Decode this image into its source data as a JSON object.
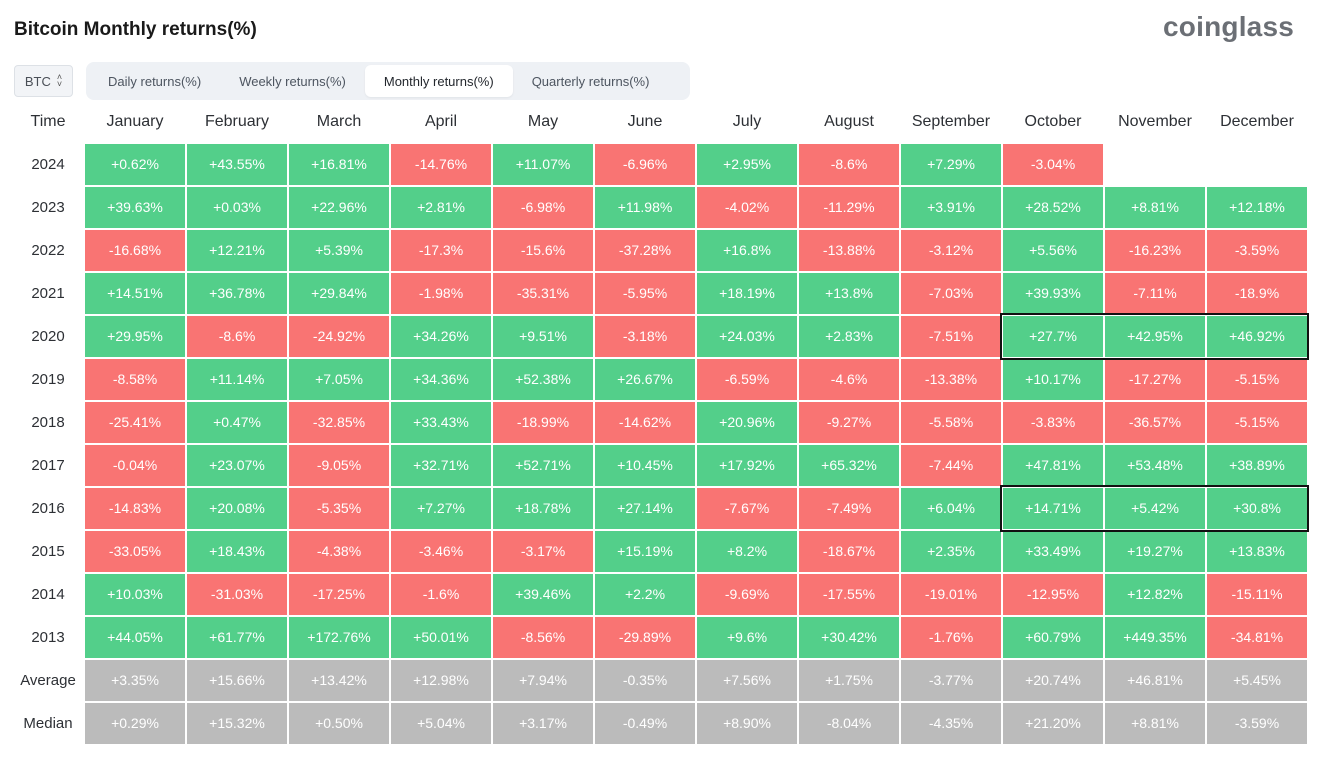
{
  "title": "Bitcoin Monthly returns(%)",
  "logo": "coinglass",
  "coin_select": {
    "value": "BTC",
    "icon": "chevron-updown-icon"
  },
  "tabs": [
    {
      "label": "Daily returns(%)",
      "active": false
    },
    {
      "label": "Weekly returns(%)",
      "active": false
    },
    {
      "label": "Monthly returns(%)",
      "active": true
    },
    {
      "label": "Quarterly returns(%)",
      "active": false
    }
  ],
  "colors": {
    "positive": "#53cf8a",
    "negative": "#f97473",
    "summary": "#bbbbbb",
    "highlight_border": "#111111"
  },
  "table": {
    "columns": [
      "Time",
      "January",
      "February",
      "March",
      "April",
      "May",
      "June",
      "July",
      "August",
      "September",
      "October",
      "November",
      "December"
    ],
    "rows": [
      {
        "label": "2024",
        "values": [
          "+0.62%",
          "+43.55%",
          "+16.81%",
          "-14.76%",
          "+11.07%",
          "-6.96%",
          "+2.95%",
          "-8.6%",
          "+7.29%",
          "-3.04%",
          null,
          null
        ]
      },
      {
        "label": "2023",
        "values": [
          "+39.63%",
          "+0.03%",
          "+22.96%",
          "+2.81%",
          "-6.98%",
          "+11.98%",
          "-4.02%",
          "-11.29%",
          "+3.91%",
          "+28.52%",
          "+8.81%",
          "+12.18%"
        ]
      },
      {
        "label": "2022",
        "values": [
          "-16.68%",
          "+12.21%",
          "+5.39%",
          "-17.3%",
          "-15.6%",
          "-37.28%",
          "+16.8%",
          "-13.88%",
          "-3.12%",
          "+5.56%",
          "-16.23%",
          "-3.59%"
        ]
      },
      {
        "label": "2021",
        "values": [
          "+14.51%",
          "+36.78%",
          "+29.84%",
          "-1.98%",
          "-35.31%",
          "-5.95%",
          "+18.19%",
          "+13.8%",
          "-7.03%",
          "+39.93%",
          "-7.11%",
          "-18.9%"
        ]
      },
      {
        "label": "2020",
        "values": [
          "+29.95%",
          "-8.6%",
          "-24.92%",
          "+34.26%",
          "+9.51%",
          "-3.18%",
          "+24.03%",
          "+2.83%",
          "-7.51%",
          "+27.7%",
          "+42.95%",
          "+46.92%"
        ]
      },
      {
        "label": "2019",
        "values": [
          "-8.58%",
          "+11.14%",
          "+7.05%",
          "+34.36%",
          "+52.38%",
          "+26.67%",
          "-6.59%",
          "-4.6%",
          "-13.38%",
          "+10.17%",
          "-17.27%",
          "-5.15%"
        ]
      },
      {
        "label": "2018",
        "values": [
          "-25.41%",
          "+0.47%",
          "-32.85%",
          "+33.43%",
          "-18.99%",
          "-14.62%",
          "+20.96%",
          "-9.27%",
          "-5.58%",
          "-3.83%",
          "-36.57%",
          "-5.15%"
        ]
      },
      {
        "label": "2017",
        "values": [
          "-0.04%",
          "+23.07%",
          "-9.05%",
          "+32.71%",
          "+52.71%",
          "+10.45%",
          "+17.92%",
          "+65.32%",
          "-7.44%",
          "+47.81%",
          "+53.48%",
          "+38.89%"
        ]
      },
      {
        "label": "2016",
        "values": [
          "-14.83%",
          "+20.08%",
          "-5.35%",
          "+7.27%",
          "+18.78%",
          "+27.14%",
          "-7.67%",
          "-7.49%",
          "+6.04%",
          "+14.71%",
          "+5.42%",
          "+30.8%"
        ]
      },
      {
        "label": "2015",
        "values": [
          "-33.05%",
          "+18.43%",
          "-4.38%",
          "-3.46%",
          "-3.17%",
          "+15.19%",
          "+8.2%",
          "-18.67%",
          "+2.35%",
          "+33.49%",
          "+19.27%",
          "+13.83%"
        ]
      },
      {
        "label": "2014",
        "values": [
          "+10.03%",
          "-31.03%",
          "-17.25%",
          "-1.6%",
          "+39.46%",
          "+2.2%",
          "-9.69%",
          "-17.55%",
          "-19.01%",
          "-12.95%",
          "+12.82%",
          "-15.11%"
        ]
      },
      {
        "label": "2013",
        "values": [
          "+44.05%",
          "+61.77%",
          "+172.76%",
          "+50.01%",
          "-8.56%",
          "-29.89%",
          "+9.6%",
          "+30.42%",
          "-1.76%",
          "+60.79%",
          "+449.35%",
          "-34.81%"
        ]
      }
    ],
    "summary_rows": [
      {
        "label": "Average",
        "values": [
          "+3.35%",
          "+15.66%",
          "+13.42%",
          "+12.98%",
          "+7.94%",
          "-0.35%",
          "+7.56%",
          "+1.75%",
          "-3.77%",
          "+20.74%",
          "+46.81%",
          "+5.45%"
        ]
      },
      {
        "label": "Median",
        "values": [
          "+0.29%",
          "+15.32%",
          "+0.50%",
          "+5.04%",
          "+3.17%",
          "-0.49%",
          "+8.90%",
          "-8.04%",
          "-4.35%",
          "+21.20%",
          "+8.81%",
          "-3.59%"
        ]
      }
    ],
    "highlights": [
      {
        "row": "2020",
        "months": [
          "October",
          "November",
          "December"
        ]
      },
      {
        "row": "2016",
        "months": [
          "October",
          "November",
          "December"
        ]
      }
    ]
  }
}
